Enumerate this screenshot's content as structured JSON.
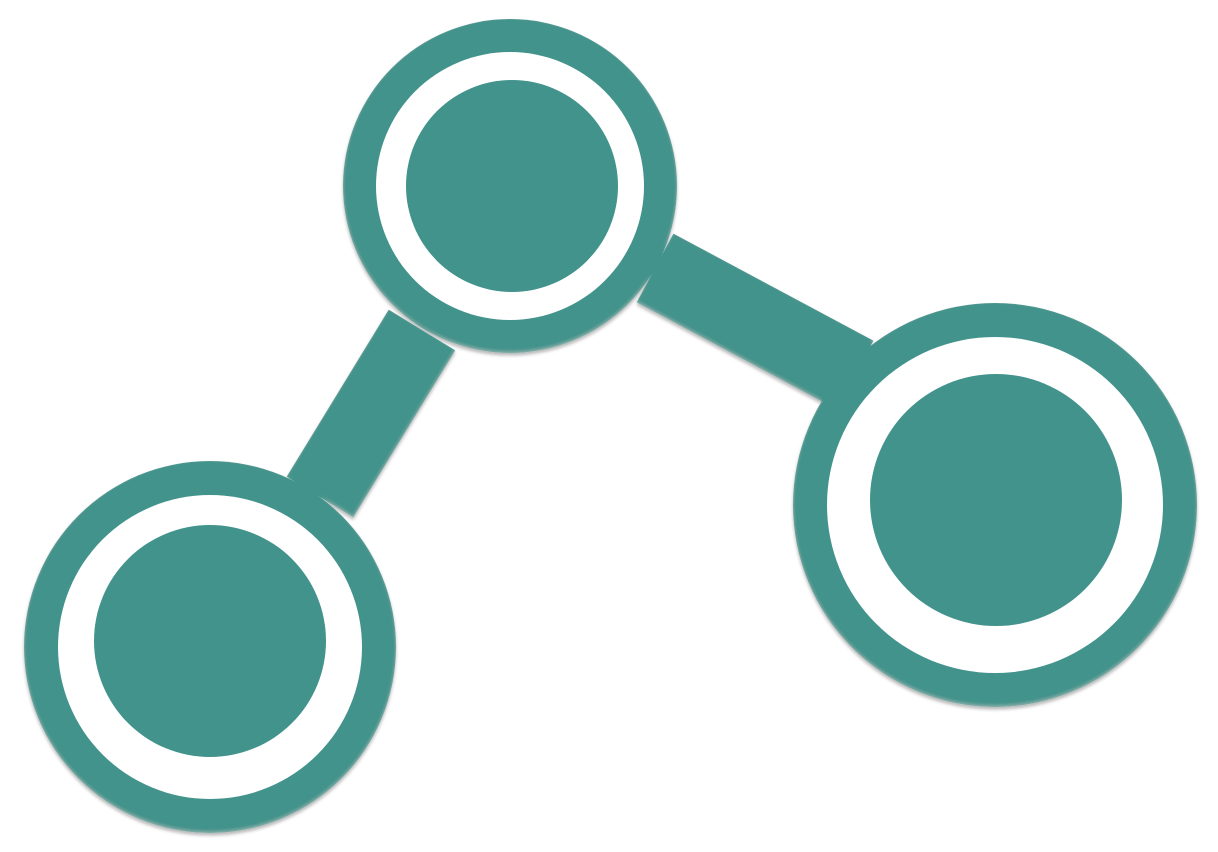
{
  "icon": {
    "name": "share-network-icon",
    "fill_color": "#42938B",
    "background_color": "#FFFFFF",
    "node_count": 3,
    "connector_count": 2
  }
}
